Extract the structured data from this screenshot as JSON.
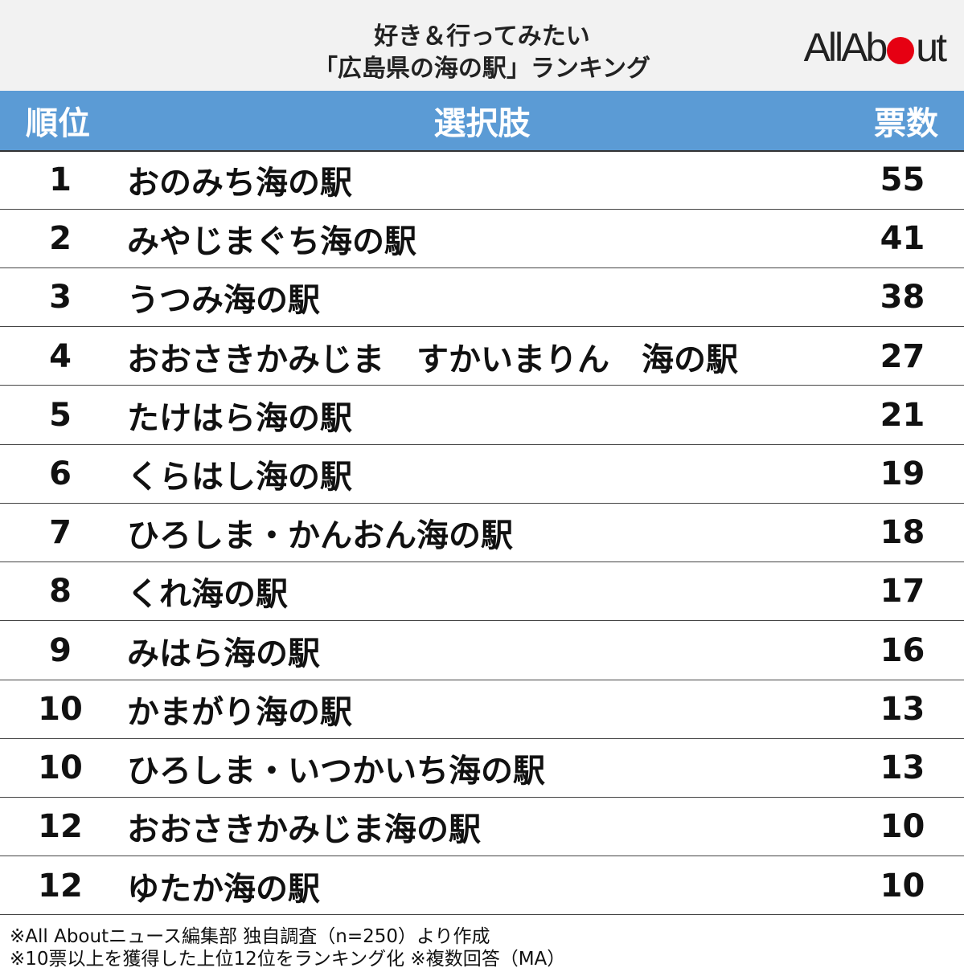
{
  "header": {
    "title": [
      "好き＆行ってみたい",
      "「広島県の海の駅」ランキング"
    ],
    "logo": [
      "AllAb",
      "ut"
    ]
  },
  "table": {
    "columns": [
      "順位",
      "選択肢",
      "票数"
    ],
    "rows": [
      [
        1,
        "おのみち海の駅",
        55
      ],
      [
        2,
        "みやじまぐち海の駅",
        41
      ],
      [
        3,
        "うつみ海の駅",
        38
      ],
      [
        4,
        "おおさきかみじま　すかいまりん　海の駅",
        27
      ],
      [
        5,
        "たけはら海の駅",
        21
      ],
      [
        6,
        "くらはし海の駅",
        19
      ],
      [
        7,
        "ひろしま・かんおん海の駅",
        18
      ],
      [
        8,
        "くれ海の駅",
        17
      ],
      [
        9,
        "みはら海の駅",
        16
      ],
      [
        10,
        "かまがり海の駅",
        13
      ],
      [
        10,
        "ひろしま・いつかいち海の駅",
        13
      ],
      [
        12,
        "おおさきかみじま海の駅",
        10
      ],
      [
        12,
        "ゆたか海の駅",
        10
      ]
    ]
  },
  "footnotes": [
    "※All Aboutニュース編集部 独自調査（n=250）より作成",
    "※10票以上を獲得した上位12位をランキング化 ※複数回答（MA）"
  ]
}
